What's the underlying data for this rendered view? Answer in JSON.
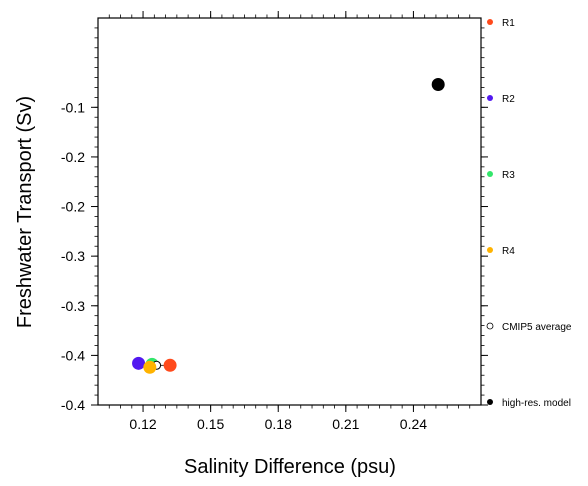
{
  "chart_data": {
    "type": "scatter",
    "title": "",
    "xlabel": "Salinity Difference (psu)",
    "ylabel": "Freshwater Transport (Sv)",
    "xlim": [
      0.1,
      0.27
    ],
    "ylim": [
      -0.4,
      -0.01
    ],
    "xticks": [
      {
        "value": 0.12,
        "label": "0.12"
      },
      {
        "value": 0.15,
        "label": "0.15"
      },
      {
        "value": 0.18,
        "label": "0.18"
      },
      {
        "value": 0.21,
        "label": "0.21"
      },
      {
        "value": 0.24,
        "label": "0.24"
      }
    ],
    "yticks": [
      {
        "value": -0.1,
        "label": "-0.1"
      },
      {
        "value": -0.15,
        "label": "-0.2"
      },
      {
        "value": -0.2,
        "label": "-0.2"
      },
      {
        "value": -0.25,
        "label": "-0.3"
      },
      {
        "value": -0.3,
        "label": "-0.3"
      },
      {
        "value": -0.35,
        "label": "-0.4"
      },
      {
        "value": -0.4,
        "label": "-0.4"
      }
    ],
    "series": [
      {
        "name": "R1",
        "color": "#ff4a1c",
        "points": [
          {
            "x": 0.132,
            "y": -0.36
          }
        ]
      },
      {
        "name": "R2",
        "color": "#5218f0",
        "points": [
          {
            "x": 0.118,
            "y": -0.358
          }
        ]
      },
      {
        "name": "R3",
        "color": "#33e66b",
        "points": [
          {
            "x": 0.124,
            "y": -0.359
          }
        ]
      },
      {
        "name": "R4",
        "color": "#ffb300",
        "points": [
          {
            "x": 0.123,
            "y": -0.362
          }
        ]
      },
      {
        "name": "CMIP5 average",
        "color": "#ffffff",
        "stroke": "#000000",
        "points": [
          {
            "x": 0.126,
            "y": -0.36
          }
        ]
      },
      {
        "name": "high-res. model",
        "color": "#000000",
        "points": [
          {
            "x": 0.251,
            "y": -0.077
          }
        ]
      }
    ],
    "legend_placement": "right",
    "grid": false
  }
}
